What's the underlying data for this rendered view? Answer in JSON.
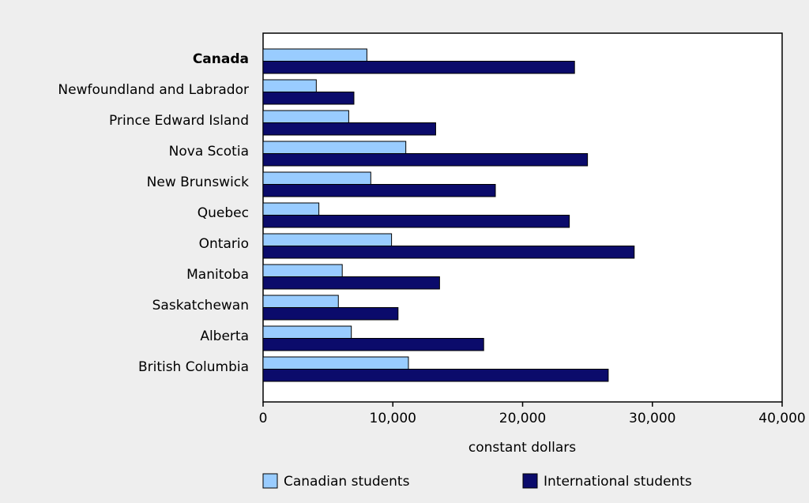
{
  "chart_data": {
    "type": "bar",
    "orientation": "horizontal",
    "x_label": "constant dollars",
    "categories": [
      "Canada",
      "Newfoundland and Labrador",
      "Prince Edward Island",
      "Nova Scotia",
      "New Brunswick",
      "Quebec",
      "Ontario",
      "Manitoba",
      "Saskatchewan",
      "Alberta",
      "British Columbia"
    ],
    "series": [
      {
        "name": "Canadian students",
        "color": "#99ccff",
        "values": [
          8000,
          4100,
          6600,
          11000,
          8300,
          4300,
          9900,
          6100,
          5800,
          6800,
          11200
        ]
      },
      {
        "name": "International students",
        "color": "#0b0b6b",
        "values": [
          24000,
          7000,
          13300,
          25000,
          17900,
          23600,
          28600,
          13600,
          10400,
          17000,
          26600
        ]
      }
    ],
    "xlim": [
      0,
      40000
    ],
    "xticks": [
      0,
      {
        "value": 10000,
        "label": "10,000"
      },
      {
        "value": 20000,
        "label": "20,000"
      },
      {
        "value": 30000,
        "label": "30,000"
      },
      {
        "value": 40000,
        "label": "40,000"
      }
    ],
    "grid": false
  }
}
